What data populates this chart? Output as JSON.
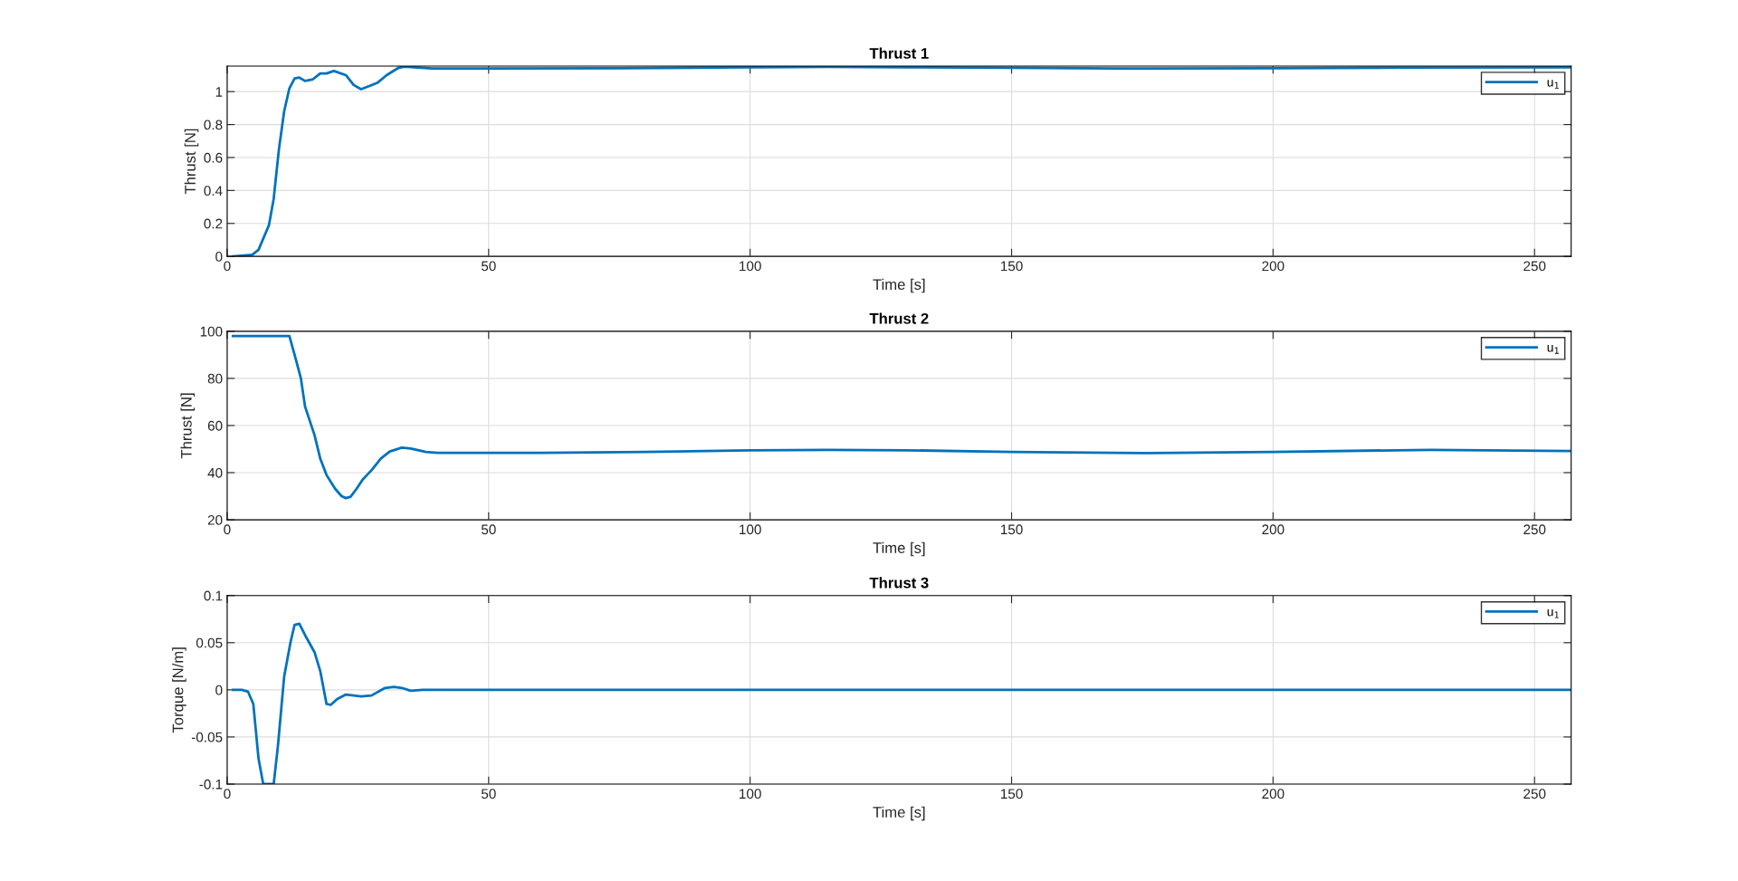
{
  "chart_data": [
    {
      "type": "line",
      "title": "Thrust 1",
      "xlabel": "Time [s]",
      "ylabel": "Thrust [N]",
      "xlim": [
        0,
        257
      ],
      "xticks": [
        0,
        50,
        100,
        150,
        200,
        250
      ],
      "ylim": [
        0,
        1.155
      ],
      "yticks": [
        0,
        0.2,
        0.4,
        0.6,
        0.8,
        1
      ],
      "grid": true,
      "legend": "top right",
      "series": [
        {
          "name": "u$_{1}$",
          "color": "#0072bd",
          "x": [
            1.1,
            4.8,
            6,
            8,
            8.9,
            9.9,
            10.9,
            11.9,
            12.9,
            13.8,
            14.9,
            16.4,
            17.8,
            19,
            20.4,
            22.7,
            24.2,
            25.6,
            27.3,
            28.8,
            30.5,
            32.8,
            34,
            35.7,
            39.2,
            50,
            75,
            100,
            115,
            130,
            150,
            170,
            200,
            225,
            257
          ],
          "values": [
            0,
            0.01,
            0.04,
            0.19,
            0.35,
            0.65,
            0.88,
            1.02,
            1.08,
            1.085,
            1.065,
            1.075,
            1.11,
            1.11,
            1.125,
            1.1,
            1.04,
            1.015,
            1.035,
            1.055,
            1.1,
            1.145,
            1.152,
            1.148,
            1.14,
            1.14,
            1.142,
            1.148,
            1.15,
            1.148,
            1.145,
            1.14,
            1.142,
            1.146,
            1.147
          ]
        }
      ]
    },
    {
      "type": "line",
      "title": "Thrust 2",
      "xlabel": "Time [s]",
      "ylabel": "Thrust [N]",
      "xlim": [
        0,
        257
      ],
      "xticks": [
        0,
        50,
        100,
        150,
        200,
        250
      ],
      "ylim": [
        20,
        100
      ],
      "yticks": [
        20,
        40,
        60,
        80,
        100
      ],
      "grid": true,
      "legend": "top right",
      "series": [
        {
          "name": "u$_{1}$",
          "color": "#0072bd",
          "x": [
            1.1,
            11.9,
            12.9,
            14.1,
            14.9,
            16.7,
            17.8,
            19,
            20.7,
            21.9,
            22.7,
            23.6,
            24.7,
            25.9,
            27.6,
            29.4,
            31.1,
            33.4,
            35.1,
            38,
            40.3,
            50,
            60,
            80,
            100,
            115,
            130,
            150,
            175,
            200,
            230,
            257
          ],
          "values": [
            98,
            98,
            90,
            80,
            68,
            56,
            46,
            39,
            33,
            30,
            29.2,
            29.8,
            33,
            37,
            41,
            46,
            49,
            50.6,
            50.2,
            48.8,
            48.4,
            48.4,
            48.4,
            48.8,
            49.5,
            49.7,
            49.5,
            48.8,
            48.3,
            48.8,
            49.7,
            49.2
          ]
        }
      ]
    },
    {
      "type": "line",
      "title": "Thrust 3",
      "xlabel": "Time [s]",
      "ylabel": "Torque [N/m]",
      "xlim": [
        0,
        257
      ],
      "xticks": [
        0,
        50,
        100,
        150,
        200,
        250
      ],
      "ylim": [
        -0.1,
        0.1
      ],
      "yticks": [
        -0.1,
        -0.05,
        0,
        0.05,
        0.1
      ],
      "grid": true,
      "legend": "top right",
      "series": [
        {
          "name": "u$_{1}$",
          "color": "#0072bd",
          "x": [
            1.1,
            2.8,
            4,
            5,
            6,
            6.9,
            8.9,
            9.7,
            10.9,
            12.1,
            12.9,
            13.8,
            14.9,
            16.7,
            17.8,
            19,
            19.8,
            21,
            22.7,
            24.2,
            25.6,
            27.6,
            30.2,
            31.9,
            33.4,
            35.1,
            37.4,
            100,
            257
          ],
          "values": [
            0,
            0,
            -0.002,
            -0.015,
            -0.073,
            -0.1,
            -0.1,
            -0.06,
            0.014,
            0.05,
            0.069,
            0.07,
            0.058,
            0.04,
            0.02,
            -0.015,
            -0.016,
            -0.01,
            -0.005,
            -0.006,
            -0.007,
            -0.006,
            0.002,
            0.003,
            0.002,
            -0.001,
            0,
            0,
            0
          ]
        }
      ]
    }
  ]
}
